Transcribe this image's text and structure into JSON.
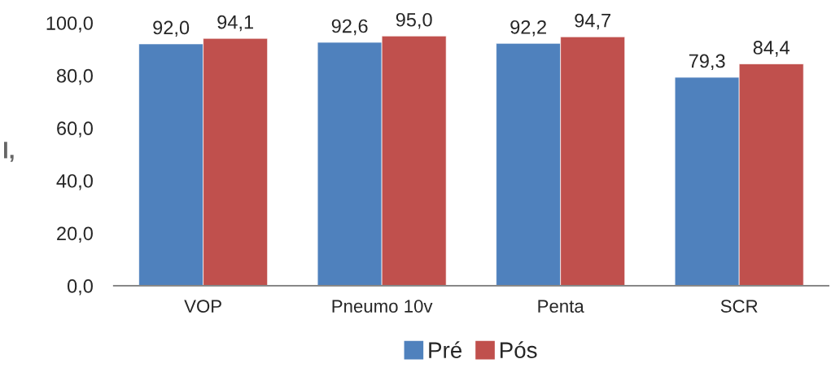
{
  "chart_data": {
    "type": "bar",
    "categories": [
      "VOP",
      "Pneumo 10v",
      "Penta",
      "SCR"
    ],
    "series": [
      {
        "name": "Pré",
        "color": "#4f81bd",
        "values": [
          92.0,
          92.6,
          92.2,
          79.3
        ]
      },
      {
        "name": "Pós",
        "color": "#c0504d",
        "values": [
          94.1,
          95.0,
          94.7,
          84.4
        ]
      }
    ],
    "ylim": [
      0,
      100
    ],
    "yticks": [
      {
        "value": 0,
        "label": "0,0"
      },
      {
        "value": 20,
        "label": "20,0"
      },
      {
        "value": 40,
        "label": "40,0"
      },
      {
        "value": 60,
        "label": "60,0"
      },
      {
        "value": 80,
        "label": "80,0"
      },
      {
        "value": 100,
        "label": "100,0"
      }
    ],
    "value_labels": [
      [
        "92,0",
        "92,6",
        "92,2",
        "79,3"
      ],
      [
        "94,1",
        "95,0",
        "94,7",
        "84,4"
      ]
    ],
    "annotations": [
      "l,"
    ],
    "legend": "bottom",
    "grid": false
  }
}
